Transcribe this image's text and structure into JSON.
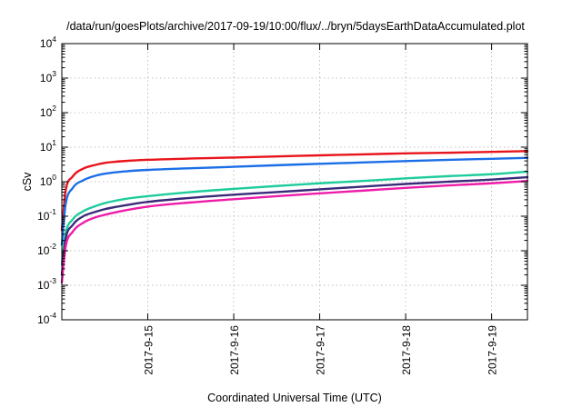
{
  "chart_data": {
    "type": "line",
    "title": "/data/run/goesPlots/archive/2017-09-19/10:00/flux/../bryn/5daysEarthDataAccumulated.plot",
    "xlabel": "Coordinated Universal Time (UTC)",
    "ylabel": "cSv",
    "x_scale": "time",
    "y_scale": "log",
    "xlim": [
      "2017-09-14T00:00",
      "2017-09-19T10:00"
    ],
    "ylim": [
      0.0001,
      10000
    ],
    "x_ticks": [
      {
        "label": "2017-9-15",
        "t": "2017-09-15T00:00"
      },
      {
        "label": "2017-9-16",
        "t": "2017-09-16T00:00"
      },
      {
        "label": "2017-9-17",
        "t": "2017-09-17T00:00"
      },
      {
        "label": "2017-9-18",
        "t": "2017-09-18T00:00"
      },
      {
        "label": "2017-9-19",
        "t": "2017-09-19T00:00"
      }
    ],
    "y_ticks": [
      {
        "base": "10",
        "exp": "-4",
        "value": 0.0001
      },
      {
        "base": "10",
        "exp": "-3",
        "value": 0.001
      },
      {
        "base": "10",
        "exp": "-2",
        "value": 0.01
      },
      {
        "base": "10",
        "exp": "-1",
        "value": 0.1
      },
      {
        "base": "10",
        "exp": "0",
        "value": 1
      },
      {
        "base": "10",
        "exp": "1",
        "value": 10
      },
      {
        "base": "10",
        "exp": "2",
        "value": 100
      },
      {
        "base": "10",
        "exp": "3",
        "value": 1000
      },
      {
        "base": "10",
        "exp": "4",
        "value": 10000
      }
    ],
    "grid": true,
    "legend": "none",
    "series": [
      {
        "color": "#e8141c",
        "points": [
          [
            "2017-09-14T00:00",
            0.04
          ],
          [
            "2017-09-14T01:00",
            0.5
          ],
          [
            "2017-09-14T03:00",
            1.4
          ],
          [
            "2017-09-14T06:00",
            2.4
          ],
          [
            "2017-09-14T09:00",
            3.0
          ],
          [
            "2017-09-14T12:00",
            3.5
          ],
          [
            "2017-09-14T18:00",
            4.0
          ],
          [
            "2017-09-15T00:00",
            4.3
          ],
          [
            "2017-09-15T12:00",
            4.7
          ],
          [
            "2017-09-16T00:00",
            5.0
          ],
          [
            "2017-09-16T12:00",
            5.4
          ],
          [
            "2017-09-17T00:00",
            5.8
          ],
          [
            "2017-09-17T12:00",
            6.2
          ],
          [
            "2017-09-18T00:00",
            6.6
          ],
          [
            "2017-09-18T12:00",
            6.9
          ],
          [
            "2017-09-19T00:00",
            7.3
          ],
          [
            "2017-09-19T10:00",
            7.7
          ]
        ]
      },
      {
        "color": "#1a6ee6",
        "points": [
          [
            "2017-09-14T00:00",
            0.015
          ],
          [
            "2017-09-14T01:00",
            0.2
          ],
          [
            "2017-09-14T03:00",
            0.65
          ],
          [
            "2017-09-14T06:00",
            1.1
          ],
          [
            "2017-09-14T09:00",
            1.45
          ],
          [
            "2017-09-14T12:00",
            1.7
          ],
          [
            "2017-09-14T18:00",
            2.0
          ],
          [
            "2017-09-15T00:00",
            2.2
          ],
          [
            "2017-09-15T12:00",
            2.45
          ],
          [
            "2017-09-16T00:00",
            2.7
          ],
          [
            "2017-09-16T12:00",
            3.0
          ],
          [
            "2017-09-17T00:00",
            3.3
          ],
          [
            "2017-09-17T12:00",
            3.6
          ],
          [
            "2017-09-18T00:00",
            3.95
          ],
          [
            "2017-09-18T12:00",
            4.3
          ],
          [
            "2017-09-19T00:00",
            4.6
          ],
          [
            "2017-09-19T10:00",
            4.9
          ]
        ]
      },
      {
        "color": "#1fcc9c",
        "points": [
          [
            "2017-09-14T00:00",
            0.004
          ],
          [
            "2017-09-14T01:00",
            0.03
          ],
          [
            "2017-09-14T03:00",
            0.08
          ],
          [
            "2017-09-14T06:00",
            0.14
          ],
          [
            "2017-09-14T09:00",
            0.19
          ],
          [
            "2017-09-14T12:00",
            0.24
          ],
          [
            "2017-09-14T18:00",
            0.32
          ],
          [
            "2017-09-15T00:00",
            0.38
          ],
          [
            "2017-09-15T12:00",
            0.5
          ],
          [
            "2017-09-16T00:00",
            0.62
          ],
          [
            "2017-09-16T12:00",
            0.75
          ],
          [
            "2017-09-17T00:00",
            0.9
          ],
          [
            "2017-09-17T12:00",
            1.05
          ],
          [
            "2017-09-18T00:00",
            1.25
          ],
          [
            "2017-09-18T12:00",
            1.45
          ],
          [
            "2017-09-19T00:00",
            1.65
          ],
          [
            "2017-09-19T10:00",
            1.95
          ]
        ]
      },
      {
        "color": "#3b2a7a",
        "points": [
          [
            "2017-09-14T00:00",
            0.002
          ],
          [
            "2017-09-14T01:00",
            0.02
          ],
          [
            "2017-09-14T03:00",
            0.055
          ],
          [
            "2017-09-14T06:00",
            0.1
          ],
          [
            "2017-09-14T09:00",
            0.13
          ],
          [
            "2017-09-14T12:00",
            0.16
          ],
          [
            "2017-09-14T18:00",
            0.21
          ],
          [
            "2017-09-15T00:00",
            0.26
          ],
          [
            "2017-09-15T12:00",
            0.34
          ],
          [
            "2017-09-16T00:00",
            0.42
          ],
          [
            "2017-09-16T12:00",
            0.5
          ],
          [
            "2017-09-17T00:00",
            0.6
          ],
          [
            "2017-09-17T12:00",
            0.72
          ],
          [
            "2017-09-18T00:00",
            0.86
          ],
          [
            "2017-09-18T12:00",
            1.0
          ],
          [
            "2017-09-19T00:00",
            1.15
          ],
          [
            "2017-09-19T10:00",
            1.35
          ]
        ]
      },
      {
        "color": "#ee1ca8",
        "points": [
          [
            "2017-09-14T00:00",
            0.0012
          ],
          [
            "2017-09-14T01:00",
            0.012
          ],
          [
            "2017-09-14T03:00",
            0.035
          ],
          [
            "2017-09-14T06:00",
            0.065
          ],
          [
            "2017-09-14T09:00",
            0.09
          ],
          [
            "2017-09-14T12:00",
            0.11
          ],
          [
            "2017-09-14T18:00",
            0.15
          ],
          [
            "2017-09-15T00:00",
            0.19
          ],
          [
            "2017-09-15T12:00",
            0.25
          ],
          [
            "2017-09-16T00:00",
            0.31
          ],
          [
            "2017-09-16T12:00",
            0.38
          ],
          [
            "2017-09-17T00:00",
            0.46
          ],
          [
            "2017-09-17T12:00",
            0.55
          ],
          [
            "2017-09-18T00:00",
            0.66
          ],
          [
            "2017-09-18T12:00",
            0.78
          ],
          [
            "2017-09-19T00:00",
            0.9
          ],
          [
            "2017-09-19T10:00",
            1.05
          ]
        ]
      }
    ]
  }
}
